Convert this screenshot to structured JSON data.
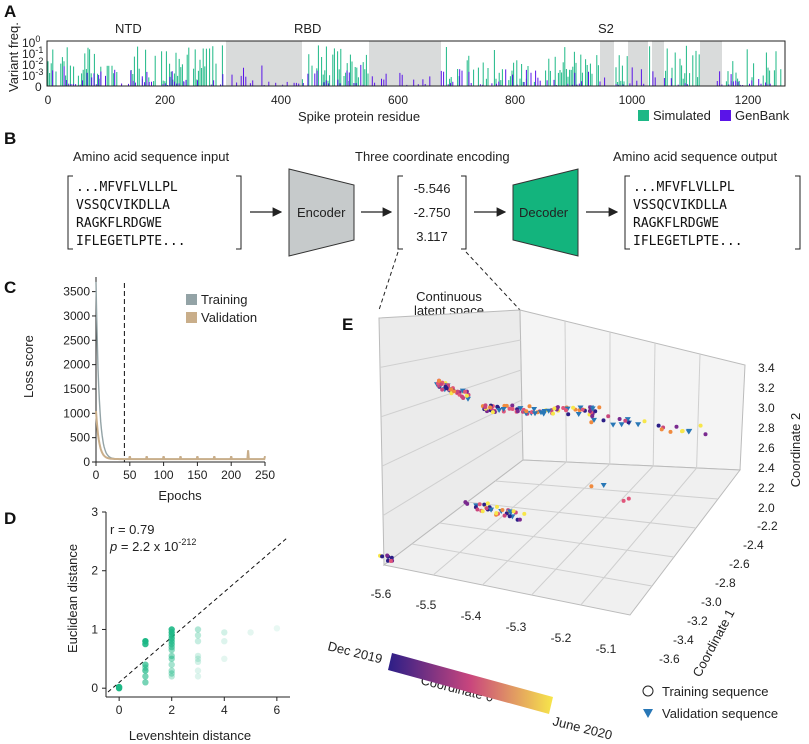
{
  "panel_labels": {
    "a": "A",
    "b": "B",
    "c": "C",
    "d": "D",
    "e": "E"
  },
  "colors": {
    "simulated": "#1db886",
    "genbank": "#5a14e8",
    "training": "#93a3a6",
    "validation": "#c9ae8a",
    "encoder": "#c6cacb",
    "decoder": "#13b47d",
    "scatter_d": "#1db886",
    "cbar_start": "#2b1e87",
    "cbar_mid": "#c9467d",
    "cbar_end": "#f7e64a"
  },
  "panelA": {
    "ylabel": "Variant freq.",
    "xlabel": "Spike protein residue",
    "regions": [
      "NTD",
      "RBD",
      "S2"
    ],
    "legend": [
      "Simulated",
      "GenBank"
    ],
    "yticks": [
      "10^0",
      "10^-1",
      "10^-2",
      "10^-3",
      "0"
    ],
    "xticks": [
      "0",
      "200",
      "400",
      "600",
      "800",
      "1000",
      "1200"
    ]
  },
  "panelB": {
    "input_title": "Amino acid sequence input",
    "coord_title": "Three coordinate encoding",
    "output_title": "Amino acid sequence output",
    "seq_lines": [
      "...MFVFLVLLPL",
      "VSSQCVIKDLLA",
      "RAGKFLRDGWE",
      "IFLEGETLPTE..."
    ],
    "encoder": "Encoder",
    "decoder": "Decoder",
    "coords": [
      "-5.546",
      "-2.750",
      "3.117"
    ],
    "latent_label_1": "Continuous",
    "latent_label_2": "latent space"
  },
  "chart_data": [
    {
      "type": "line",
      "title": "",
      "xlabel": "Epochs",
      "ylabel": "Loss score",
      "xlim": [
        0,
        250
      ],
      "ylim": [
        0,
        3800
      ],
      "xticks": [
        "0",
        "50",
        "100",
        "150",
        "200",
        "250"
      ],
      "yticks": [
        "0",
        "500",
        "1000",
        "1500",
        "2000",
        "2500",
        "3000",
        "3500"
      ],
      "cutoff_epoch": 42,
      "series": [
        {
          "name": "Training",
          "peak": 3700,
          "floor": 60
        },
        {
          "name": "Validation",
          "peak": 1050,
          "floor": 60
        }
      ]
    },
    {
      "type": "scatter",
      "xlabel": "Levenshtein distance",
      "ylabel": "Euclidean distance",
      "xlim": [
        -0.5,
        6.5
      ],
      "ylim": [
        -0.15,
        3
      ],
      "xticks": [
        "0",
        "2",
        "4",
        "6"
      ],
      "yticks": [
        "0",
        "1",
        "2",
        "3"
      ],
      "annotation_r": "r = 0.79",
      "annotation_p_prefix": "p",
      "annotation_p_value": "= 2.2 x 10",
      "annotation_p_exp": "-212",
      "points": [
        [
          0,
          0,
          1
        ],
        [
          0,
          0.02,
          1
        ],
        [
          1,
          0.8,
          1
        ],
        [
          1,
          0.75,
          0.9
        ],
        [
          1,
          0.4,
          0.7
        ],
        [
          1,
          0.3,
          0.7
        ],
        [
          1,
          0.2,
          0.6
        ],
        [
          1,
          0.1,
          0.6
        ],
        [
          1,
          0.35,
          0.5
        ],
        [
          2,
          1.0,
          0.9
        ],
        [
          2,
          0.95,
          0.9
        ],
        [
          2,
          0.9,
          0.8
        ],
        [
          2,
          0.85,
          0.8
        ],
        [
          2,
          0.8,
          0.7
        ],
        [
          2,
          0.75,
          0.7
        ],
        [
          2,
          0.7,
          0.6
        ],
        [
          2,
          0.65,
          0.5
        ],
        [
          2,
          0.55,
          0.5
        ],
        [
          2,
          0.5,
          0.5
        ],
        [
          2,
          0.4,
          0.4
        ],
        [
          2,
          0.3,
          0.4
        ],
        [
          2,
          0.25,
          0.4
        ],
        [
          2,
          0.2,
          0.3
        ],
        [
          3,
          1.0,
          0.35
        ],
        [
          3,
          0.9,
          0.3
        ],
        [
          3,
          0.8,
          0.25
        ],
        [
          3,
          0.55,
          0.2
        ],
        [
          3,
          0.5,
          0.2
        ],
        [
          3,
          0.45,
          0.2
        ],
        [
          3,
          0.3,
          0.15
        ],
        [
          3,
          0.2,
          0.15
        ],
        [
          4,
          0.95,
          0.2
        ],
        [
          4,
          0.8,
          0.15
        ],
        [
          4,
          0.5,
          0.12
        ],
        [
          5,
          0.95,
          0.12
        ],
        [
          6,
          1.02,
          0.1
        ]
      ]
    },
    {
      "type": "scatter",
      "title": "",
      "xlabel": "Coordinate 0",
      "ylabel": "Coordinate 1",
      "zlabel": "Coordinate 2",
      "x_ticks": [
        "-5.6",
        "-5.5",
        "-5.4",
        "-5.3",
        "-5.2",
        "-5.1"
      ],
      "y_ticks": [
        "-2.2",
        "-2.4",
        "-2.6",
        "-2.8",
        "-3.0",
        "-3.2",
        "-3.4",
        "-3.6"
      ],
      "z_ticks": [
        "3.4",
        "3.2",
        "3.0",
        "2.8",
        "2.6",
        "2.4",
        "2.2",
        "2.0"
      ],
      "colorbar_start": "Dec 2019",
      "colorbar_end": "June 2020",
      "legend": [
        "Training sequence",
        "Validation sequence"
      ]
    }
  ]
}
